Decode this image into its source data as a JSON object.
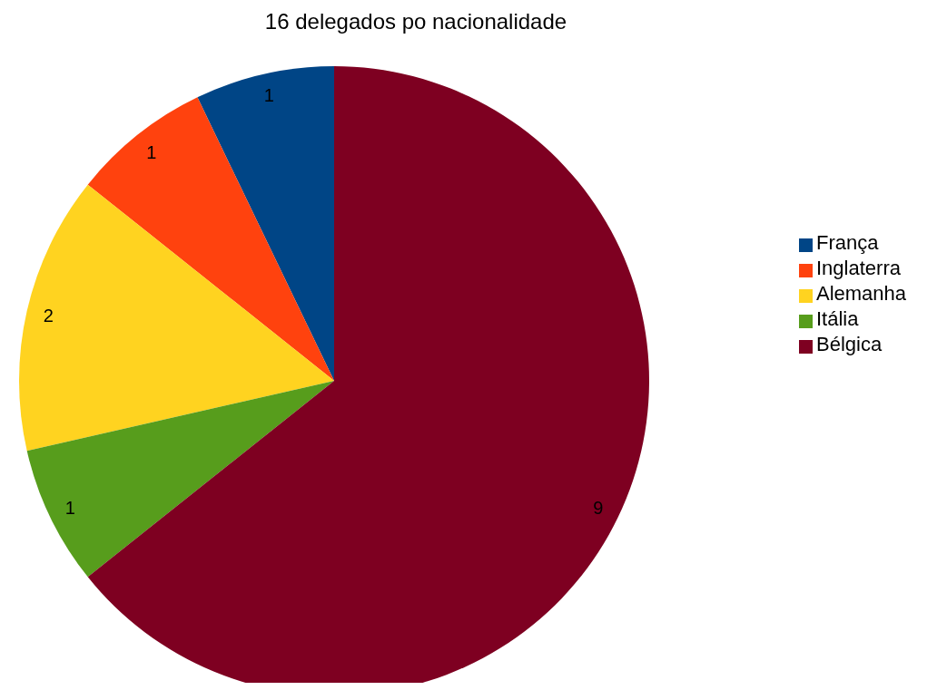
{
  "chart_data": {
    "type": "pie",
    "title": "16 delegados po nacionalidade",
    "categories": [
      "França",
      "Inglaterra",
      "Alemanha",
      "Itália",
      "Bélgica"
    ],
    "values": [
      1,
      1,
      2,
      1,
      9
    ],
    "colors": [
      "#004586",
      "#ff420e",
      "#ffd320",
      "#579d1c",
      "#7e0021"
    ],
    "data_labels": true,
    "legend": "right"
  }
}
